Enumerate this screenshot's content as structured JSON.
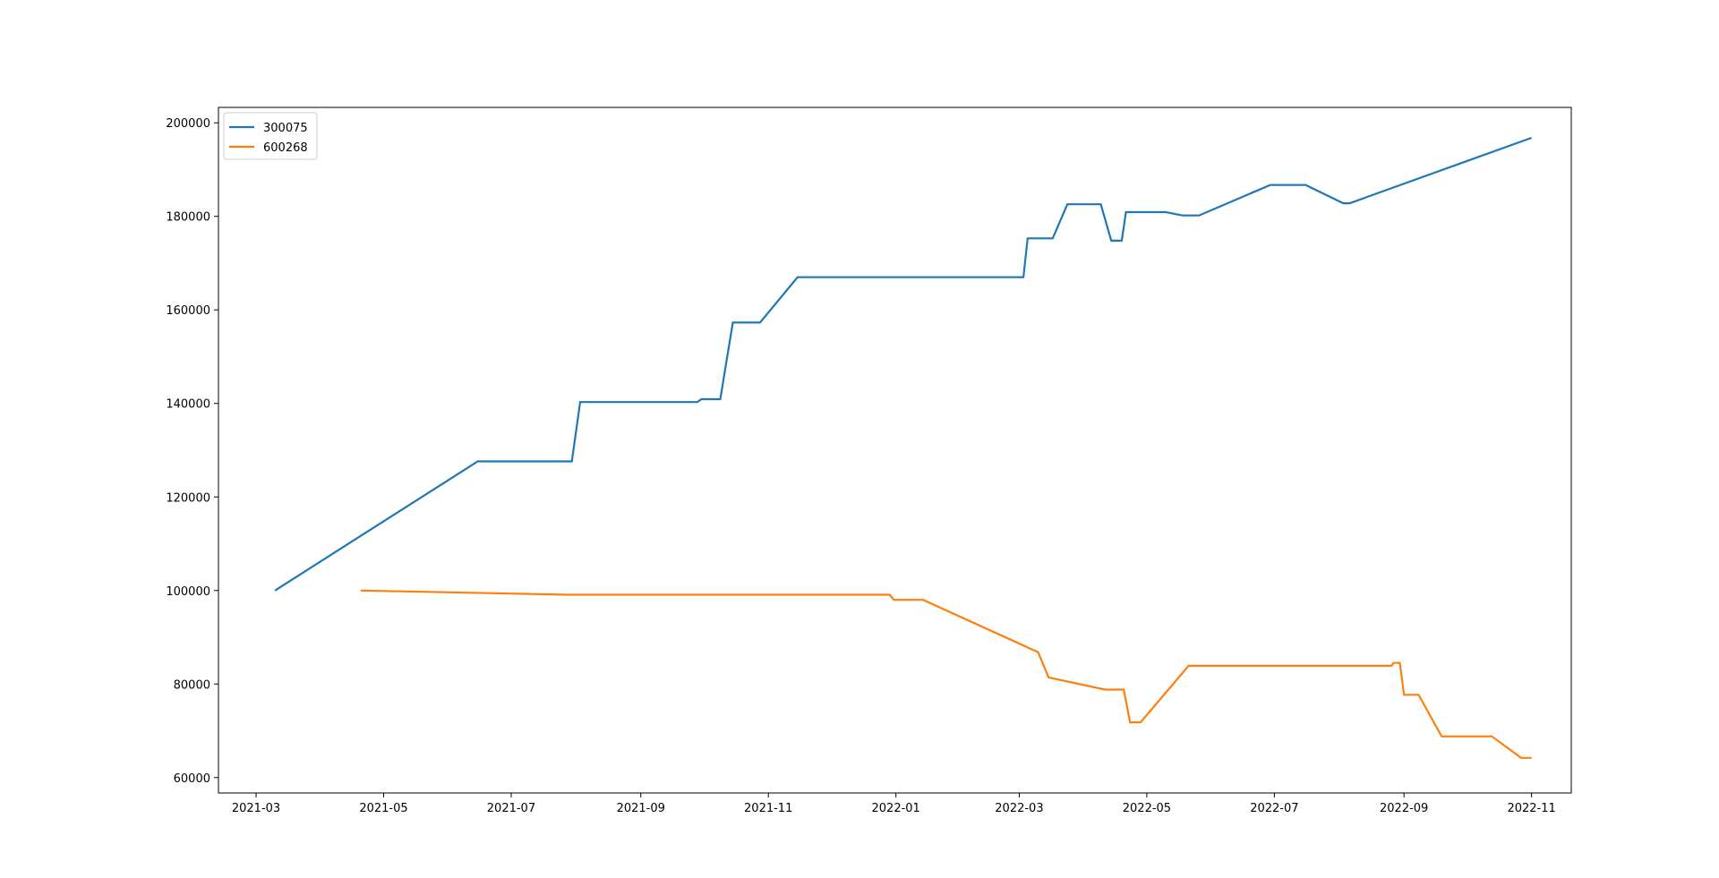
{
  "chart_data": {
    "type": "line",
    "title": "",
    "xlabel": "",
    "ylabel": "",
    "x_axis": {
      "kind": "date",
      "range": [
        "2021-02-11",
        "2022-11-20"
      ],
      "ticks": [
        "2021-03",
        "2021-05",
        "2021-07",
        "2021-09",
        "2021-11",
        "2022-01",
        "2022-03",
        "2022-05",
        "2022-07",
        "2022-09",
        "2022-11"
      ],
      "tick_dates": [
        "2021-03-01",
        "2021-05-01",
        "2021-07-01",
        "2021-09-01",
        "2021-11-01",
        "2022-01-01",
        "2022-03-01",
        "2022-05-01",
        "2022-07-01",
        "2022-09-01",
        "2022-11-01"
      ]
    },
    "y_axis": {
      "range": [
        56700,
        203300
      ],
      "ticks": [
        60000,
        80000,
        100000,
        120000,
        140000,
        160000,
        180000,
        200000
      ],
      "tick_labels": [
        "60000",
        "80000",
        "100000",
        "120000",
        "140000",
        "160000",
        "180000",
        "200000"
      ]
    },
    "grid": false,
    "legend": "upper-left",
    "series": [
      {
        "name": "300075",
        "color": "#1f77b4",
        "points": [
          [
            "2021-03-10",
            100000
          ],
          [
            "2021-06-15",
            127600
          ],
          [
            "2021-07-30",
            127600
          ],
          [
            "2021-08-03",
            140300
          ],
          [
            "2021-09-28",
            140300
          ],
          [
            "2021-09-30",
            140900
          ],
          [
            "2021-10-09",
            140900
          ],
          [
            "2021-10-15",
            157300
          ],
          [
            "2021-10-28",
            157300
          ],
          [
            "2021-11-15",
            167000
          ],
          [
            "2022-03-03",
            167000
          ],
          [
            "2022-03-05",
            175300
          ],
          [
            "2022-03-17",
            175300
          ],
          [
            "2022-03-24",
            182600
          ],
          [
            "2022-04-09",
            182600
          ],
          [
            "2022-04-14",
            174800
          ],
          [
            "2022-04-19",
            174800
          ],
          [
            "2022-04-21",
            180900
          ],
          [
            "2022-05-10",
            180900
          ],
          [
            "2022-05-18",
            180200
          ],
          [
            "2022-05-26",
            180200
          ],
          [
            "2022-06-29",
            186700
          ],
          [
            "2022-07-16",
            186700
          ],
          [
            "2022-08-03",
            182800
          ],
          [
            "2022-08-06",
            182800
          ],
          [
            "2022-11-01",
            196800
          ]
        ]
      },
      {
        "name": "600268",
        "color": "#ff7f0e",
        "points": [
          [
            "2021-04-20",
            100000
          ],
          [
            "2021-07-28",
            99100
          ],
          [
            "2021-12-29",
            99100
          ],
          [
            "2021-12-31",
            98000
          ],
          [
            "2022-01-14",
            98000
          ],
          [
            "2022-03-10",
            86800
          ],
          [
            "2022-03-15",
            81400
          ],
          [
            "2022-04-11",
            78800
          ],
          [
            "2022-04-20",
            78800
          ],
          [
            "2022-04-23",
            71800
          ],
          [
            "2022-04-28",
            71800
          ],
          [
            "2022-05-21",
            83900
          ],
          [
            "2022-08-26",
            83900
          ],
          [
            "2022-08-27",
            84500
          ],
          [
            "2022-08-30",
            84500
          ],
          [
            "2022-09-01",
            77700
          ],
          [
            "2022-09-08",
            77700
          ],
          [
            "2022-09-19",
            68800
          ],
          [
            "2022-10-13",
            68800
          ],
          [
            "2022-10-27",
            64200
          ],
          [
            "2022-11-01",
            64200
          ]
        ]
      }
    ]
  }
}
